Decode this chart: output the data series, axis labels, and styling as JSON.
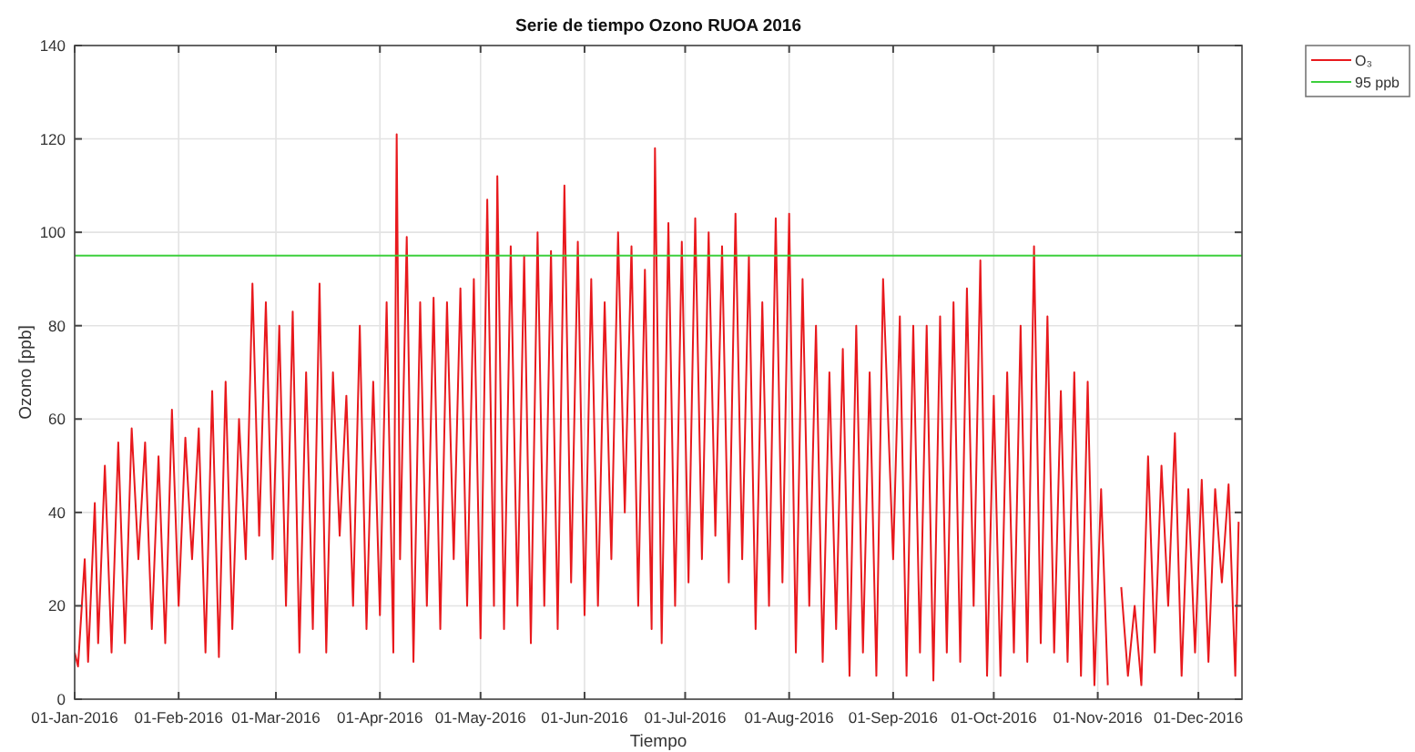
{
  "chart_data": {
    "type": "line",
    "title": "Serie de tiempo Ozono RUOA 2016",
    "xlabel": "Tiempo",
    "ylabel": "Ozono [ppb]",
    "xlim": [
      "2016-01-01",
      "2016-12-14"
    ],
    "xticks": [
      {
        "value": "2016-01-01",
        "label": "01-Jan-2016"
      },
      {
        "value": "2016-02-01",
        "label": "01-Feb-2016"
      },
      {
        "value": "2016-03-01",
        "label": "01-Mar-2016"
      },
      {
        "value": "2016-04-01",
        "label": "01-Apr-2016"
      },
      {
        "value": "2016-05-01",
        "label": "01-May-2016"
      },
      {
        "value": "2016-06-01",
        "label": "01-Jun-2016"
      },
      {
        "value": "2016-07-01",
        "label": "01-Jul-2016"
      },
      {
        "value": "2016-08-01",
        "label": "01-Aug-2016"
      },
      {
        "value": "2016-09-01",
        "label": "01-Sep-2016"
      },
      {
        "value": "2016-10-01",
        "label": "01-Oct-2016"
      },
      {
        "value": "2016-11-01",
        "label": "01-Nov-2016"
      },
      {
        "value": "2016-12-01",
        "label": "01-Dec-2016"
      }
    ],
    "ylim": [
      0,
      140
    ],
    "yticks": [
      0,
      20,
      40,
      60,
      80,
      100,
      120,
      140
    ],
    "grid": true,
    "legend": "top right",
    "series": [
      {
        "name": "O₃",
        "color": "#e8191d",
        "x": [
          "2016-01-01",
          "2016-01-02",
          "2016-01-04",
          "2016-01-05",
          "2016-01-07",
          "2016-01-08",
          "2016-01-10",
          "2016-01-12",
          "2016-01-14",
          "2016-01-16",
          "2016-01-18",
          "2016-01-20",
          "2016-01-22",
          "2016-01-24",
          "2016-01-26",
          "2016-01-28",
          "2016-01-30",
          "2016-02-01",
          "2016-02-03",
          "2016-02-05",
          "2016-02-07",
          "2016-02-09",
          "2016-02-11",
          "2016-02-13",
          "2016-02-15",
          "2016-02-17",
          "2016-02-19",
          "2016-02-21",
          "2016-02-23",
          "2016-02-25",
          "2016-02-27",
          "2016-02-29",
          "2016-03-02",
          "2016-03-04",
          "2016-03-06",
          "2016-03-08",
          "2016-03-10",
          "2016-03-12",
          "2016-03-14",
          "2016-03-16",
          "2016-03-18",
          "2016-03-20",
          "2016-03-22",
          "2016-03-24",
          "2016-03-26",
          "2016-03-28",
          "2016-03-30",
          "2016-04-01",
          "2016-04-03",
          "2016-04-05",
          "2016-04-06",
          "2016-04-07",
          "2016-04-09",
          "2016-04-11",
          "2016-04-13",
          "2016-04-15",
          "2016-04-17",
          "2016-04-19",
          "2016-04-21",
          "2016-04-23",
          "2016-04-25",
          "2016-04-27",
          "2016-04-29",
          "2016-05-01",
          "2016-05-03",
          "2016-05-05",
          "2016-05-06",
          "2016-05-08",
          "2016-05-10",
          "2016-05-12",
          "2016-05-14",
          "2016-05-16",
          "2016-05-18",
          "2016-05-20",
          "2016-05-22",
          "2016-05-24",
          "2016-05-26",
          "2016-05-28",
          "2016-05-30",
          "2016-06-01",
          "2016-06-03",
          "2016-06-05",
          "2016-06-07",
          "2016-06-09",
          "2016-06-11",
          "2016-06-13",
          "2016-06-15",
          "2016-06-17",
          "2016-06-19",
          "2016-06-21",
          "2016-06-22",
          "2016-06-24",
          "2016-06-26",
          "2016-06-28",
          "2016-06-30",
          "2016-07-02",
          "2016-07-04",
          "2016-07-06",
          "2016-07-08",
          "2016-07-10",
          "2016-07-12",
          "2016-07-14",
          "2016-07-16",
          "2016-07-18",
          "2016-07-20",
          "2016-07-22",
          "2016-07-24",
          "2016-07-26",
          "2016-07-28",
          "2016-07-30",
          "2016-08-01",
          "2016-08-03",
          "2016-08-05",
          "2016-08-07",
          "2016-08-09",
          "2016-08-11",
          "2016-08-13",
          "2016-08-15",
          "2016-08-17",
          "2016-08-19",
          "2016-08-21",
          "2016-08-23",
          "2016-08-25",
          "2016-08-27",
          "2016-08-29",
          "2016-09-01",
          "2016-09-03",
          "2016-09-05",
          "2016-09-07",
          "2016-09-09",
          "2016-09-11",
          "2016-09-13",
          "2016-09-15",
          "2016-09-17",
          "2016-09-19",
          "2016-09-21",
          "2016-09-23",
          "2016-09-25",
          "2016-09-27",
          "2016-09-29",
          "2016-10-01",
          "2016-10-03",
          "2016-10-05",
          "2016-10-07",
          "2016-10-09",
          "2016-10-11",
          "2016-10-13",
          "2016-10-15",
          "2016-10-17",
          "2016-10-19",
          "2016-10-21",
          "2016-10-23",
          "2016-10-25",
          "2016-10-27",
          "2016-10-29",
          "2016-10-31",
          "2016-11-02",
          "2016-11-04",
          "2016-11-06",
          "2016-11-08",
          "2016-11-10",
          "2016-11-12",
          "2016-11-14",
          "2016-11-16",
          "2016-11-18",
          "2016-11-20",
          "2016-11-22",
          "2016-11-24",
          "2016-11-26",
          "2016-11-28",
          "2016-11-30",
          "2016-12-02",
          "2016-12-04",
          "2016-12-06",
          "2016-12-08",
          "2016-12-10",
          "2016-12-12",
          "2016-12-13"
        ],
        "values": [
          10,
          7,
          30,
          8,
          42,
          12,
          50,
          10,
          55,
          12,
          58,
          30,
          55,
          15,
          52,
          12,
          62,
          20,
          56,
          30,
          58,
          10,
          66,
          9,
          68,
          15,
          60,
          30,
          89,
          35,
          85,
          30,
          80,
          20,
          83,
          10,
          70,
          15,
          89,
          10,
          70,
          35,
          65,
          20,
          80,
          15,
          68,
          18,
          85,
          10,
          121,
          30,
          99,
          8,
          85,
          20,
          86,
          15,
          85,
          30,
          88,
          20,
          90,
          13,
          107,
          20,
          112,
          15,
          97,
          20,
          95,
          12,
          100,
          20,
          96,
          15,
          110,
          25,
          98,
          18,
          90,
          20,
          85,
          30,
          100,
          40,
          97,
          20,
          92,
          15,
          118,
          12,
          102,
          20,
          98,
          25,
          103,
          30,
          100,
          35,
          97,
          25,
          104,
          30,
          95,
          15,
          85,
          20,
          103,
          25,
          104,
          10,
          90,
          20,
          80,
          8,
          70,
          15,
          75,
          5,
          80,
          10,
          70,
          5,
          90,
          30,
          82,
          5,
          80,
          10,
          80,
          4,
          82,
          10,
          85,
          8,
          88,
          20,
          94,
          5,
          65,
          5,
          70,
          10,
          80,
          8,
          97,
          12,
          82,
          10,
          66,
          8,
          70,
          5,
          68,
          3,
          45,
          3,
          null,
          24,
          5,
          20,
          3,
          52,
          10,
          50,
          20,
          57,
          5,
          45,
          10,
          47,
          8,
          45,
          25,
          46,
          5,
          38
        ]
      },
      {
        "name": "95 ppb",
        "color": "#3ccf3c",
        "x": [
          "2016-01-01",
          "2016-12-14"
        ],
        "values": [
          95,
          95
        ]
      }
    ]
  }
}
